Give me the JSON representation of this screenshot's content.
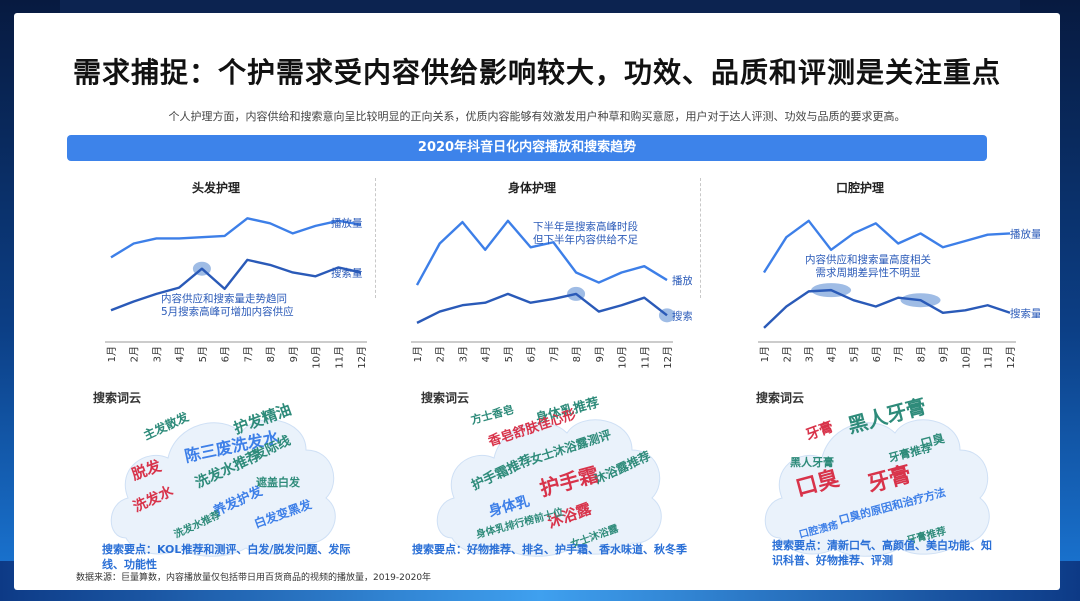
{
  "title": "需求捕捉：个护需求受内容供给影响较大，功效、品质和评测是关注重点",
  "subtitle": "个人护理方面，内容供给和搜索意向呈比较明显的正向关系，优质内容能够有效激发用户种草和购买意愿，用户对于达人评测、功效与品质的要求更高。",
  "banner": "2020年抖音日化内容播放和搜索趋势",
  "series_labels": {
    "play": "播放量",
    "search": "搜索量"
  },
  "cloud_label": "搜索词云",
  "footnote": "数据来源：巨量算数，内容播放量仅包括带日用百货商品的视频的播放量，2019-2020年",
  "colors": {
    "play": "#3d7fe8",
    "search": "#2a5ab8",
    "highlight": "#7fa6dc"
  },
  "chart_data": [
    {
      "type": "line",
      "title": "头发护理",
      "categories": [
        "1月",
        "2月",
        "3月",
        "4月",
        "5月",
        "6月",
        "7月",
        "8月",
        "9月",
        "10月",
        "11月",
        "12月"
      ],
      "series": [
        {
          "name": "播放量",
          "values": [
            64,
            75,
            79,
            79,
            80,
            81,
            95,
            91,
            83,
            89,
            93,
            90
          ]
        },
        {
          "name": "搜索量",
          "values": [
            22,
            29,
            35,
            40,
            55,
            39,
            62,
            58,
            52,
            49,
            56,
            52
          ]
        }
      ],
      "ylim": [
        0,
        100
      ],
      "annotation": [
        "内容供应和搜索量走势趋同",
        "5月搜索高峰可增加内容供应"
      ]
    },
    {
      "type": "line",
      "title": "身体护理",
      "categories": [
        "1月",
        "2月",
        "3月",
        "4月",
        "5月",
        "6月",
        "7月",
        "8月",
        "9月",
        "10月",
        "11月",
        "12月"
      ],
      "series": [
        {
          "name": "播放量",
          "values": [
            42,
            75,
            92,
            70,
            93,
            72,
            76,
            52,
            44,
            52,
            57,
            46
          ]
        },
        {
          "name": "搜索量",
          "values": [
            12,
            21,
            26,
            28,
            35,
            28,
            31,
            35,
            21,
            26,
            32,
            18
          ]
        }
      ],
      "ylim": [
        0,
        100
      ],
      "annotation": [
        "下半年是搜索高峰时段",
        "但下半年内容供给不足"
      ]
    },
    {
      "type": "line",
      "title": "口腔护理",
      "categories": [
        "1月",
        "2月",
        "3月",
        "4月",
        "5月",
        "6月",
        "7月",
        "8月",
        "9月",
        "10月",
        "11月",
        "12月"
      ],
      "series": [
        {
          "name": "播放量",
          "values": [
            52,
            80,
            93,
            70,
            83,
            91,
            75,
            83,
            72,
            77,
            82,
            83
          ]
        },
        {
          "name": "搜索量",
          "values": [
            8,
            25,
            37,
            38,
            30,
            25,
            32,
            30,
            20,
            22,
            26,
            20
          ]
        }
      ],
      "ylim": [
        0,
        100
      ],
      "annotation": [
        "内容供应和搜索量高度相关",
        "需求周期差异性不明显"
      ]
    }
  ],
  "clouds": [
    {
      "keypoints": "搜索要点：KOL推荐和测评、白发/脱发问题、发际线、功能性",
      "words": [
        {
          "text": "陈三废洗发水",
          "color": "#3d7fe8",
          "size": 16,
          "x": 80,
          "y": 74,
          "rot": -12
        },
        {
          "text": "护发精油",
          "color": "#2e8b7a",
          "size": 15,
          "x": 130,
          "y": 46,
          "rot": -20
        },
        {
          "text": "发际线",
          "color": "#2e8b7a",
          "size": 13,
          "x": 150,
          "y": 72,
          "rot": -25
        },
        {
          "text": "脱发",
          "color": "#d8334a",
          "size": 15,
          "x": 28,
          "y": 92,
          "rot": -20
        },
        {
          "text": "洗发水推荐",
          "color": "#2e8b7a",
          "size": 14,
          "x": 92,
          "y": 100,
          "rot": -25
        },
        {
          "text": "遮盖白发",
          "color": "#2e8b7a",
          "size": 11,
          "x": 150,
          "y": 98,
          "rot": 0
        },
        {
          "text": "主发散发",
          "color": "#2e8b7a",
          "size": 12,
          "x": 40,
          "y": 52,
          "rot": -25
        },
        {
          "text": "洗发水",
          "color": "#d8334a",
          "size": 14,
          "x": 30,
          "y": 124,
          "rot": -25
        },
        {
          "text": "养发护发",
          "color": "#3d7fe8",
          "size": 13,
          "x": 110,
          "y": 128,
          "rot": -25
        },
        {
          "text": "白发变黑发",
          "color": "#3d7fe8",
          "size": 12,
          "x": 150,
          "y": 140,
          "rot": -20
        },
        {
          "text": "洗发水推荐",
          "color": "#2e8b7a",
          "size": 10,
          "x": 70,
          "y": 150,
          "rot": -25
        }
      ]
    },
    {
      "keypoints": "搜索要点：好物推荐、排名、护手霜、香水味道、秋冬季",
      "words": [
        {
          "text": "身体乳推荐",
          "color": "#2e8b7a",
          "size": 13,
          "x": 105,
          "y": 35,
          "rot": -15
        },
        {
          "text": "香皂舒肤佳心形",
          "color": "#d8334a",
          "size": 13,
          "x": 58,
          "y": 58,
          "rot": -18
        },
        {
          "text": "女士沐浴露测评",
          "color": "#2e8b7a",
          "size": 12,
          "x": 100,
          "y": 76,
          "rot": -18
        },
        {
          "text": "护手霜",
          "color": "#d8334a",
          "size": 20,
          "x": 110,
          "y": 108,
          "rot": -15
        },
        {
          "text": "护手霜推荐",
          "color": "#2e8b7a",
          "size": 13,
          "x": 42,
          "y": 102,
          "rot": -25
        },
        {
          "text": "沐浴露推荐",
          "color": "#2e8b7a",
          "size": 12,
          "x": 165,
          "y": 96,
          "rot": -25
        },
        {
          "text": "身体乳",
          "color": "#3d7fe8",
          "size": 14,
          "x": 58,
          "y": 128,
          "rot": -15
        },
        {
          "text": "沐浴露",
          "color": "#d8334a",
          "size": 15,
          "x": 118,
          "y": 140,
          "rot": -20
        },
        {
          "text": "身体乳排行榜前十位",
          "color": "#2e8b7a",
          "size": 10,
          "x": 45,
          "y": 150,
          "rot": -15
        },
        {
          "text": "方士香皂",
          "color": "#2e8b7a",
          "size": 11,
          "x": 40,
          "y": 36,
          "rot": -15
        },
        {
          "text": "女士沐浴露",
          "color": "#2e8b7a",
          "size": 10,
          "x": 140,
          "y": 160,
          "rot": -20
        }
      ]
    },
    {
      "keypoints": "搜索要点：清新口气、高颜值、美白功能、知识科普、好物推荐、评测",
      "words": [
        {
          "text": "黑人牙膏",
          "color": "#2e8b7a",
          "size": 20,
          "x": 90,
          "y": 45,
          "rot": -15
        },
        {
          "text": "牙膏",
          "color": "#d8334a",
          "size": 14,
          "x": 48,
          "y": 52,
          "rot": -20
        },
        {
          "text": "口臭",
          "color": "#d8334a",
          "size": 22,
          "x": 38,
          "y": 108,
          "rot": -15
        },
        {
          "text": "牙膏",
          "color": "#d8334a",
          "size": 22,
          "x": 110,
          "y": 104,
          "rot": -15
        },
        {
          "text": "牙膏推荐",
          "color": "#2e8b7a",
          "size": 11,
          "x": 130,
          "y": 74,
          "rot": -15
        },
        {
          "text": "口臭的原因和治疗方法",
          "color": "#3d7fe8",
          "size": 11,
          "x": 80,
          "y": 136,
          "rot": -15
        },
        {
          "text": "黑人牙膏",
          "color": "#2e8b7a",
          "size": 11,
          "x": 30,
          "y": 78,
          "rot": 0
        },
        {
          "text": "口臭",
          "color": "#2e8b7a",
          "size": 12,
          "x": 162,
          "y": 60,
          "rot": -15
        },
        {
          "text": "牙膏推荐",
          "color": "#2e8b7a",
          "size": 10,
          "x": 148,
          "y": 156,
          "rot": -15
        },
        {
          "text": "口腔溃疡",
          "color": "#3d7fe8",
          "size": 10,
          "x": 40,
          "y": 150,
          "rot": -15
        }
      ]
    }
  ]
}
